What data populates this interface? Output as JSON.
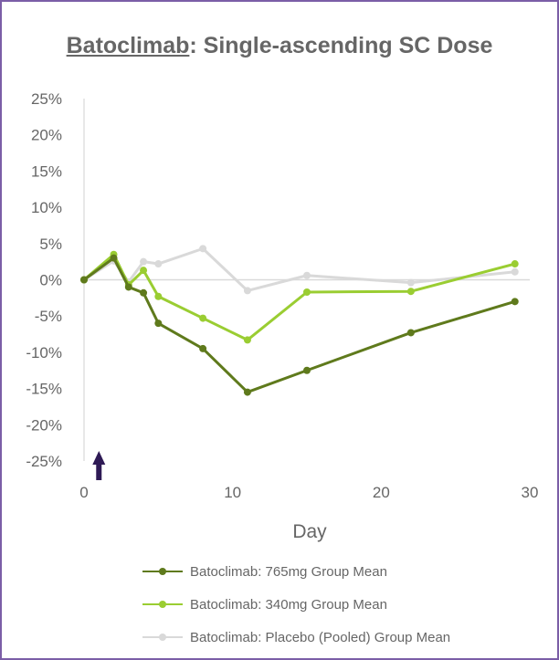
{
  "chart_data": {
    "type": "line",
    "title_underlined": "Batoclimab",
    "title_rest": ": Single-ascending SC Dose",
    "xlabel": "Day",
    "ylabel": "",
    "xlim": [
      0,
      30
    ],
    "ylim": [
      -25,
      25
    ],
    "x_ticks": [
      0,
      10,
      20,
      30
    ],
    "y_ticks": [
      25,
      20,
      15,
      10,
      5,
      0,
      -5,
      -10,
      -15,
      -20,
      -25
    ],
    "y_tick_labels": [
      "25%",
      "20%",
      "15%",
      "10%",
      "5%",
      "0%",
      "-5%",
      "-10%",
      "-15%",
      "-20%",
      "-25%"
    ],
    "zero_reference_line": true,
    "grid": false,
    "legend_position": "bottom",
    "dosing_arrow_day": 1,
    "series": [
      {
        "name": "Batoclimab: 765mg Group Mean",
        "color": "#5f7a1c",
        "x": [
          0,
          2,
          3,
          4,
          5,
          8,
          11,
          15,
          22,
          29
        ],
        "y": [
          0,
          3,
          -1,
          -1.8,
          -6,
          -9.5,
          -15.5,
          -12.5,
          -7.3,
          -3
        ]
      },
      {
        "name": "Batoclimab: 340mg Group Mean",
        "color": "#9acd32",
        "x": [
          0,
          2,
          3,
          4,
          5,
          8,
          11,
          15,
          22,
          29
        ],
        "y": [
          0,
          3.5,
          -0.7,
          1.3,
          -2.3,
          -5.3,
          -8.3,
          -1.7,
          -1.6,
          2.2
        ]
      },
      {
        "name": "Batoclimab: Placebo (Pooled) Group Mean",
        "color": "#d9d9d9",
        "x": [
          0,
          2,
          3,
          4,
          5,
          8,
          11,
          15,
          22,
          29
        ],
        "y": [
          0,
          2.6,
          -0.3,
          2.5,
          2.2,
          4.3,
          -1.5,
          0.6,
          -0.4,
          1.1
        ]
      }
    ]
  }
}
